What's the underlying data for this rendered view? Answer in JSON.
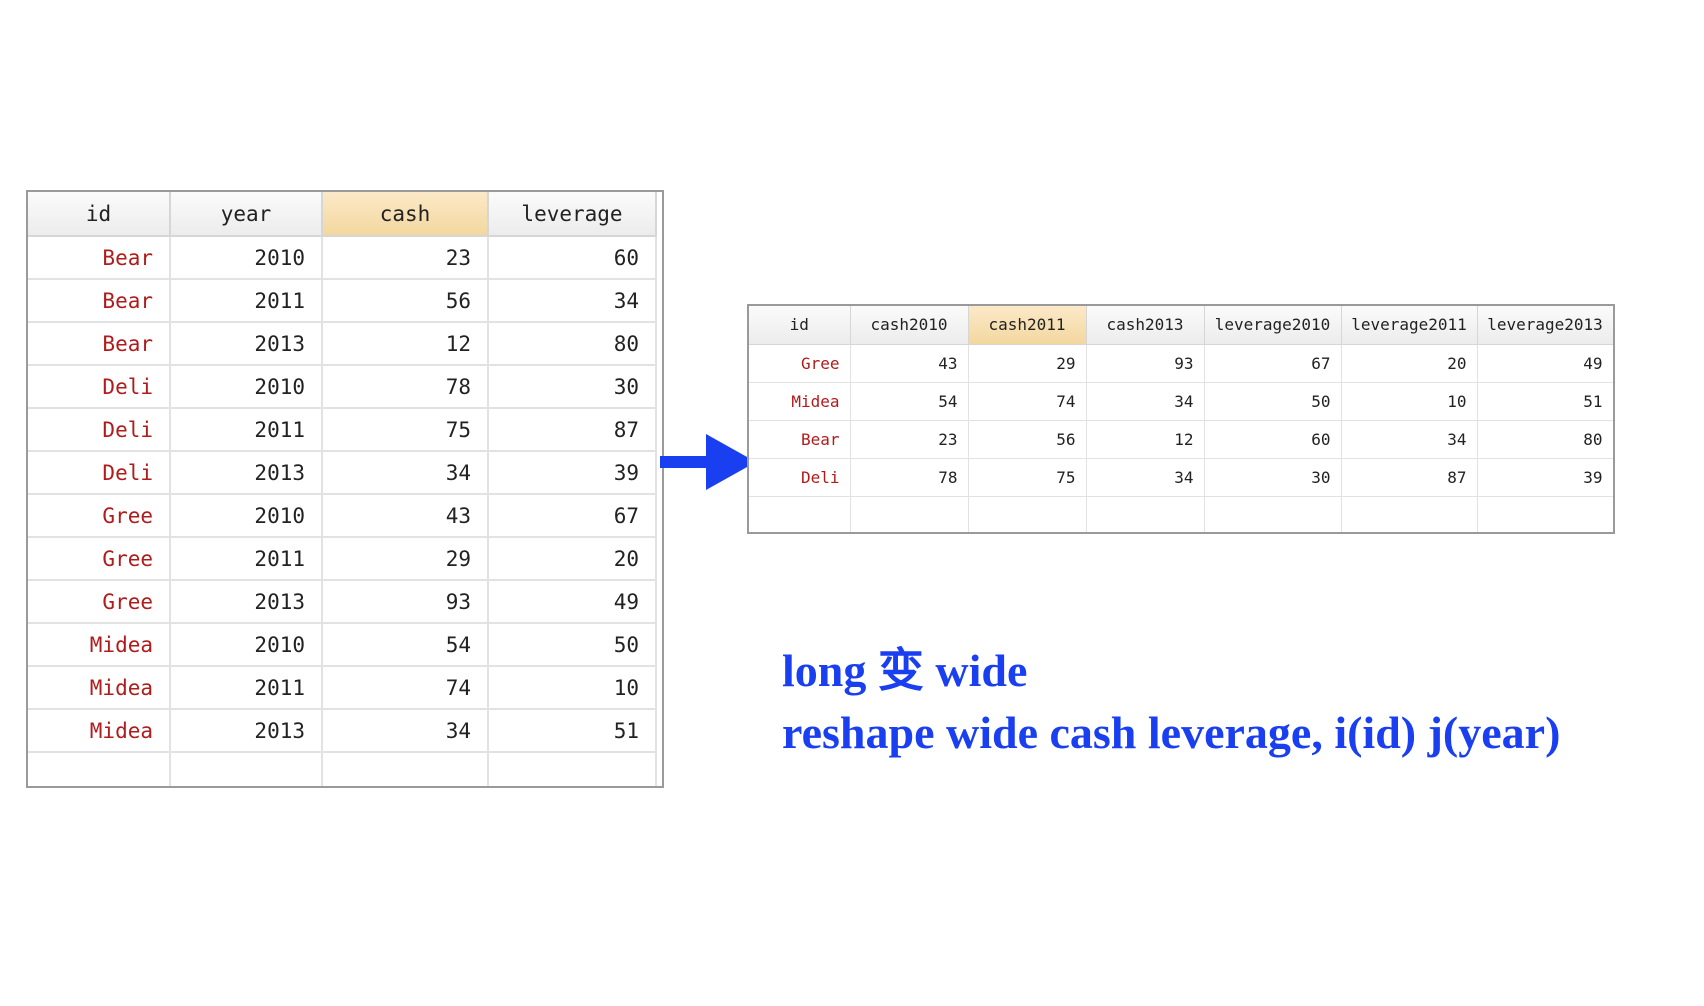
{
  "long_table": {
    "headers": [
      "id",
      "year",
      "cash",
      "leverage"
    ],
    "selected_header_index": 2,
    "rows": [
      [
        "Bear",
        "2010",
        "23",
        "60"
      ],
      [
        "Bear",
        "2011",
        "56",
        "34"
      ],
      [
        "Bear",
        "2013",
        "12",
        "80"
      ],
      [
        "Deli",
        "2010",
        "78",
        "30"
      ],
      [
        "Deli",
        "2011",
        "75",
        "87"
      ],
      [
        "Deli",
        "2013",
        "34",
        "39"
      ],
      [
        "Gree",
        "2010",
        "43",
        "67"
      ],
      [
        "Gree",
        "2011",
        "29",
        "20"
      ],
      [
        "Gree",
        "2013",
        "93",
        "49"
      ],
      [
        "Midea",
        "2010",
        "54",
        "50"
      ],
      [
        "Midea",
        "2011",
        "74",
        "10"
      ],
      [
        "Midea",
        "2013",
        "34",
        "51"
      ]
    ]
  },
  "wide_table": {
    "headers": [
      "id",
      "cash2010",
      "cash2011",
      "cash2013",
      "leverage2010",
      "leverage2011",
      "leverage2013"
    ],
    "selected_header_index": 2,
    "rows": [
      [
        "Gree",
        "43",
        "29",
        "93",
        "67",
        "20",
        "49"
      ],
      [
        "Midea",
        "54",
        "74",
        "34",
        "50",
        "10",
        "51"
      ],
      [
        "Bear",
        "23",
        "56",
        "12",
        "60",
        "34",
        "80"
      ],
      [
        "Deli",
        "78",
        "75",
        "34",
        "30",
        "87",
        "39"
      ]
    ]
  },
  "arrow": {
    "icon": "arrow-right-icon",
    "color": "#1a3ff0"
  },
  "caption": {
    "line1": "long 变 wide",
    "line2": "reshape wide cash leverage, i(id) j(year)",
    "color": "#1a3ff0"
  },
  "colors": {
    "id_text": "#b01b1b",
    "selected_header": "#f3d79f"
  }
}
